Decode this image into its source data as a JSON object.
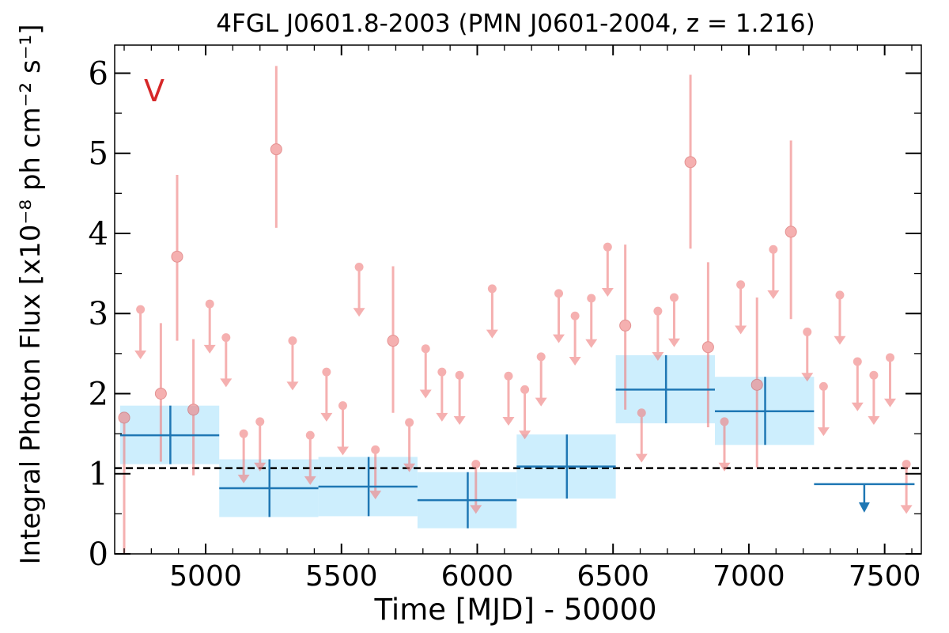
{
  "chart_data": {
    "type": "scatter",
    "title": "4FGL J0601.8-2003 (PMN J0601-2004, z = 1.216)",
    "xlabel": "Time [MJD] - 50000",
    "ylabel": "Integral Photon Flux [x10⁻⁸ ph cm⁻² s⁻¹]",
    "annotation": "V",
    "xlim": [
      4665,
      7635
    ],
    "ylim": [
      0,
      6.35
    ],
    "x_ticks": [
      5000,
      5500,
      6000,
      6500,
      7000,
      7500
    ],
    "y_ticks": [
      0,
      1,
      2,
      3,
      4,
      5,
      6
    ],
    "reference_line": 1.07,
    "colors": {
      "short_bins": "#f08080",
      "long_bins": "#1f77b4",
      "band_fill": "#cdeefd",
      "reference": "#000000",
      "annotation": "#d62728"
    },
    "series": [
      {
        "points": [
          {
            "x": 4700,
            "y": 1.7,
            "yerr_lo": 1.7,
            "yerr_hi": 0.0,
            "ul": false
          },
          {
            "x": 4760,
            "y": 3.05,
            "ul": true
          },
          {
            "x": 4835,
            "y": 2.0,
            "yerr_lo": 0.85,
            "yerr_hi": 0.88,
            "ul": false
          },
          {
            "x": 4895,
            "y": 3.71,
            "yerr_lo": 1.05,
            "yerr_hi": 1.02,
            "ul": false
          },
          {
            "x": 4955,
            "y": 1.8,
            "yerr_lo": 0.82,
            "yerr_hi": 0.88,
            "ul": false
          },
          {
            "x": 5015,
            "y": 3.12,
            "ul": true
          },
          {
            "x": 5075,
            "y": 2.7,
            "ul": true
          },
          {
            "x": 5140,
            "y": 1.5,
            "ul": true
          },
          {
            "x": 5200,
            "y": 1.65,
            "ul": true
          },
          {
            "x": 5260,
            "y": 5.05,
            "yerr_lo": 0.98,
            "yerr_hi": 1.04,
            "ul": false
          },
          {
            "x": 5320,
            "y": 2.66,
            "ul": true
          },
          {
            "x": 5385,
            "y": 1.48,
            "ul": true
          },
          {
            "x": 5445,
            "y": 2.27,
            "ul": true
          },
          {
            "x": 5505,
            "y": 1.85,
            "ul": true
          },
          {
            "x": 5565,
            "y": 3.58,
            "ul": true
          },
          {
            "x": 5625,
            "y": 1.3,
            "ul": true
          },
          {
            "x": 5690,
            "y": 2.66,
            "yerr_lo": 0.9,
            "yerr_hi": 0.93,
            "ul": false
          },
          {
            "x": 5750,
            "y": 1.64,
            "ul": true
          },
          {
            "x": 5810,
            "y": 2.56,
            "ul": true
          },
          {
            "x": 5870,
            "y": 2.27,
            "ul": true
          },
          {
            "x": 5935,
            "y": 2.23,
            "ul": true
          },
          {
            "x": 5995,
            "y": 1.12,
            "ul": true
          },
          {
            "x": 6055,
            "y": 3.31,
            "ul": true
          },
          {
            "x": 6115,
            "y": 2.22,
            "ul": true
          },
          {
            "x": 6175,
            "y": 2.05,
            "ul": true
          },
          {
            "x": 6235,
            "y": 2.46,
            "ul": true
          },
          {
            "x": 6300,
            "y": 3.25,
            "ul": true
          },
          {
            "x": 6360,
            "y": 2.97,
            "ul": true
          },
          {
            "x": 6420,
            "y": 3.19,
            "ul": true
          },
          {
            "x": 6480,
            "y": 3.83,
            "ul": true
          },
          {
            "x": 6545,
            "y": 2.85,
            "yerr_lo": 1.05,
            "yerr_hi": 1.01,
            "ul": false
          },
          {
            "x": 6605,
            "y": 1.76,
            "ul": true
          },
          {
            "x": 6665,
            "y": 3.03,
            "ul": true
          },
          {
            "x": 6725,
            "y": 3.2,
            "ul": true
          },
          {
            "x": 6785,
            "y": 4.89,
            "yerr_lo": 1.08,
            "yerr_hi": 1.09,
            "ul": false
          },
          {
            "x": 6850,
            "y": 2.58,
            "yerr_lo": 1.0,
            "yerr_hi": 1.06,
            "ul": false
          },
          {
            "x": 6910,
            "y": 1.65,
            "ul": true
          },
          {
            "x": 6970,
            "y": 3.36,
            "ul": true
          },
          {
            "x": 7030,
            "y": 2.11,
            "yerr_lo": 1.03,
            "yerr_hi": 1.09,
            "ul": false
          },
          {
            "x": 7090,
            "y": 3.8,
            "ul": true
          },
          {
            "x": 7155,
            "y": 4.02,
            "yerr_lo": 1.09,
            "yerr_hi": 1.14,
            "ul": false
          },
          {
            "x": 7215,
            "y": 2.77,
            "ul": true
          },
          {
            "x": 7275,
            "y": 2.09,
            "ul": true
          },
          {
            "x": 7335,
            "y": 3.23,
            "ul": true
          },
          {
            "x": 7400,
            "y": 2.4,
            "ul": true
          },
          {
            "x": 7460,
            "y": 2.23,
            "ul": true
          },
          {
            "x": 7520,
            "y": 2.45,
            "ul": true
          },
          {
            "x": 7580,
            "y": 1.12,
            "ul": true
          }
        ]
      },
      {
        "points": [
          {
            "x": 4870,
            "x0": 4685,
            "x1": 5050,
            "y": 1.48,
            "ylo": 1.12,
            "yhi": 1.85,
            "ul": false
          },
          {
            "x": 5235,
            "x0": 5050,
            "x1": 5415,
            "y": 0.82,
            "ylo": 0.46,
            "yhi": 1.18,
            "ul": false
          },
          {
            "x": 5600,
            "x0": 5415,
            "x1": 5780,
            "y": 0.84,
            "ylo": 0.47,
            "yhi": 1.21,
            "ul": false
          },
          {
            "x": 5965,
            "x0": 5780,
            "x1": 6145,
            "y": 0.67,
            "ylo": 0.32,
            "yhi": 1.02,
            "ul": false
          },
          {
            "x": 6330,
            "x0": 6145,
            "x1": 6510,
            "y": 1.09,
            "ylo": 0.69,
            "yhi": 1.49,
            "ul": false
          },
          {
            "x": 6695,
            "x0": 6510,
            "x1": 6875,
            "y": 2.05,
            "ylo": 1.63,
            "yhi": 2.48,
            "ul": false
          },
          {
            "x": 7060,
            "x0": 6875,
            "x1": 7240,
            "y": 1.78,
            "ylo": 1.36,
            "yhi": 2.21,
            "ul": false
          },
          {
            "x": 7425,
            "x0": 7240,
            "x1": 7610,
            "y": 0.87,
            "ul": true
          }
        ]
      }
    ]
  }
}
